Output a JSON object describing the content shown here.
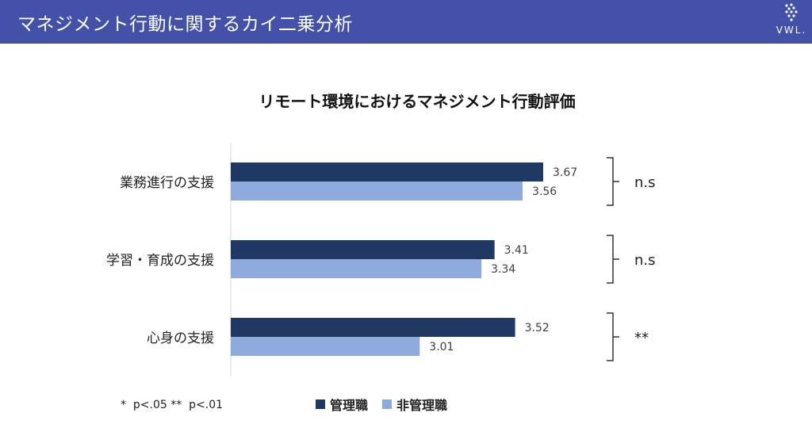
{
  "header": {
    "title": "マネジメント行動に関するカイ二乗分析",
    "logo_text": "VWL."
  },
  "colors": {
    "header_bg": "#4351a8",
    "manager": "#1f3864",
    "non_manager": "#8faadc"
  },
  "footnote": "*  p<.05 **  p<.01",
  "chart_data": {
    "type": "bar",
    "orientation": "horizontal",
    "title": "リモート環境におけるマネジメント行動評価",
    "categories": [
      "業務進行の支援",
      "学習・育成の支援",
      "心身の支援"
    ],
    "series": [
      {
        "name": "管理職",
        "values": [
          3.67,
          3.41,
          3.52
        ],
        "color": "#1f3864"
      },
      {
        "name": "非管理職",
        "values": [
          3.56,
          3.34,
          3.01
        ],
        "color": "#8faadc"
      }
    ],
    "value_labels": [
      [
        "3.67",
        "3.56"
      ],
      [
        "3.41",
        "3.34"
      ],
      [
        "3.52",
        "3.01"
      ]
    ],
    "significance": [
      "n.s",
      "n.s",
      "**"
    ],
    "xlim": [
      2.0,
      4.0
    ],
    "grid": false,
    "legend_position": "bottom"
  }
}
